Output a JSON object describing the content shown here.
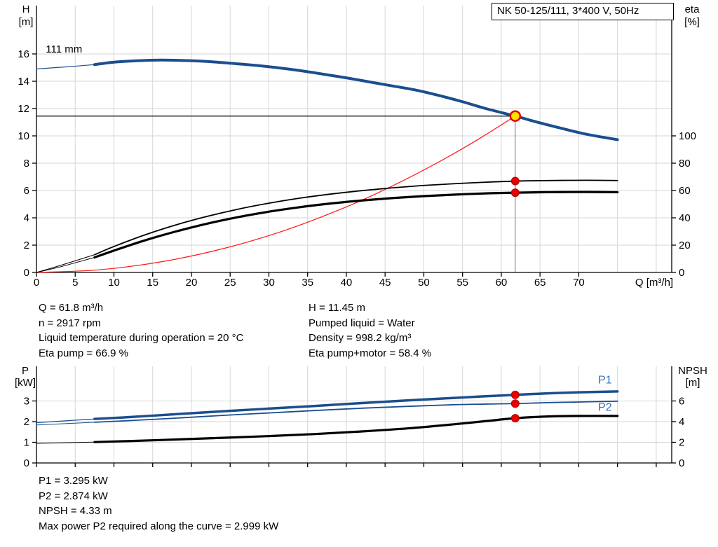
{
  "title_box": "NK 50-125/111, 3*400 V, 50Hz",
  "info_top": {
    "left": [
      "Q = 61.8 m³/h",
      "n = 2917 rpm",
      "Liquid temperature during operation = 20 °C",
      "Eta pump = 66.9 %"
    ],
    "right": [
      "H = 11.45 m",
      "Pumped liquid = Water",
      "Density = 998.2 kg/m³",
      "Eta pump+motor = 58.4 %"
    ]
  },
  "info_bottom": [
    "P1 = 3.295 kW",
    "P2 = 2.874 kW",
    "NPSH = 4.33 m",
    "Max power P2 required along the curve = 2.999 kW"
  ],
  "duty_point": {
    "q_m3h": 61.8,
    "h_m": 11.45,
    "eta_pump_pct": 66.9,
    "eta_pump_motor_pct": 58.4,
    "p1_kw": 3.295,
    "p2_kw": 2.874,
    "npsh_m": 4.33
  },
  "chart_data": [
    {
      "type": "line",
      "id": "qh",
      "title": "QH / efficiency curves",
      "x_axis": {
        "label": "Q [m³/h]",
        "min": 0,
        "max": 82,
        "grid_step": 5,
        "show_tick_labels": true,
        "ticks": [
          0,
          5,
          10,
          15,
          20,
          25,
          30,
          35,
          40,
          45,
          50,
          55,
          60,
          65,
          70
        ]
      },
      "y_left": {
        "title": "H",
        "unit": "[m]",
        "min": 0,
        "ticks": [
          0,
          2,
          4,
          6,
          8,
          10,
          12,
          14,
          16
        ]
      },
      "y_right": {
        "title": "eta",
        "unit": "[%]",
        "min": 0,
        "ticks": [
          0,
          20,
          40,
          60,
          80,
          100
        ]
      },
      "duty_lines": [
        {
          "type": "h",
          "axis": "left",
          "v": 11.45,
          "q1": 0,
          "q2": 61.8,
          "color": "#000000",
          "width": 1.3
        },
        {
          "type": "v",
          "axis": "left",
          "q": 61.8,
          "v1": 0,
          "v2": 11.45,
          "color": "#909090",
          "width": 1.2
        }
      ],
      "series": [
        {
          "name": "head-curve-lead",
          "axis": "left",
          "color": "#1b4e8e",
          "width": 1.2,
          "points": [
            [
              0,
              14.9
            ],
            [
              2.5,
              15.0
            ],
            [
              5,
              15.1
            ],
            [
              7.5,
              15.22
            ]
          ]
        },
        {
          "name": "head-curve-111mm",
          "axis": "left",
          "color": "#1b4e8e",
          "width": 4,
          "points": [
            [
              7.5,
              15.22
            ],
            [
              10,
              15.4
            ],
            [
              13,
              15.5
            ],
            [
              16,
              15.55
            ],
            [
              19,
              15.52
            ],
            [
              22,
              15.45
            ],
            [
              25,
              15.32
            ],
            [
              28,
              15.18
            ],
            [
              31,
              15.0
            ],
            [
              34,
              14.78
            ],
            [
              37,
              14.52
            ],
            [
              40,
              14.25
            ],
            [
              43,
              13.95
            ],
            [
              46,
              13.65
            ],
            [
              49,
              13.35
            ],
            [
              52,
              12.95
            ],
            [
              55,
              12.5
            ],
            [
              58,
              12.0
            ],
            [
              61.8,
              11.45
            ],
            [
              65,
              10.95
            ],
            [
              68,
              10.52
            ],
            [
              71,
              10.12
            ],
            [
              75,
              9.72
            ]
          ]
        },
        {
          "name": "system-curve",
          "axis": "left",
          "color": "#ff1414",
          "width": 1.2,
          "points": [
            [
              0,
              0
            ],
            [
              8,
              0.19
            ],
            [
              16,
              0.77
            ],
            [
              24,
              1.73
            ],
            [
              32,
              3.07
            ],
            [
              40,
              4.8
            ],
            [
              46,
              6.35
            ],
            [
              52,
              8.11
            ],
            [
              57,
              9.74
            ],
            [
              61.8,
              11.45
            ]
          ]
        },
        {
          "name": "eta-pump-lead",
          "axis": "right",
          "color": "#000000",
          "width": 1,
          "points": [
            [
              0,
              0
            ],
            [
              3,
              5
            ],
            [
              7.5,
              13
            ]
          ]
        },
        {
          "name": "eta-pump-curve",
          "axis": "right",
          "color": "#000000",
          "width": 1.8,
          "points": [
            [
              7.5,
              13
            ],
            [
              10,
              19
            ],
            [
              14,
              27.5
            ],
            [
              18,
              34.8
            ],
            [
              22,
              41
            ],
            [
              26,
              46.3
            ],
            [
              30,
              50.7
            ],
            [
              34,
              54.4
            ],
            [
              38,
              57.4
            ],
            [
              42,
              59.9
            ],
            [
              46,
              62
            ],
            [
              50,
              63.7
            ],
            [
              54,
              65
            ],
            [
              58,
              66.1
            ],
            [
              61.8,
              66.9
            ],
            [
              65,
              67.2
            ],
            [
              68,
              67.4
            ],
            [
              71,
              67.5
            ],
            [
              75,
              67.3
            ]
          ]
        },
        {
          "name": "eta-pump-motor-lead",
          "axis": "right",
          "color": "#000000",
          "width": 1,
          "points": [
            [
              0,
              0
            ],
            [
              3,
              4
            ],
            [
              7.5,
              11
            ]
          ]
        },
        {
          "name": "eta-pump-motor-curve",
          "axis": "right",
          "color": "#000000",
          "width": 3.2,
          "points": [
            [
              7.5,
              11
            ],
            [
              10,
              16
            ],
            [
              14,
              23.5
            ],
            [
              18,
              30
            ],
            [
              22,
              35.7
            ],
            [
              26,
              40.5
            ],
            [
              30,
              44.5
            ],
            [
              34,
              47.8
            ],
            [
              38,
              50.5
            ],
            [
              42,
              52.7
            ],
            [
              46,
              54.5
            ],
            [
              50,
              55.9
            ],
            [
              54,
              57.0
            ],
            [
              58,
              57.9
            ],
            [
              61.8,
              58.4
            ],
            [
              65,
              58.7
            ],
            [
              68,
              58.85
            ],
            [
              71,
              58.9
            ],
            [
              75,
              58.75
            ]
          ]
        }
      ],
      "markers": [
        {
          "name": "duty-point-head",
          "q": 61.8,
          "v": 11.45,
          "axis": "left",
          "r": 7,
          "fill": "#ffe000",
          "stroke": "#e00000",
          "sw": 2.5
        },
        {
          "name": "duty-point-eta-pump",
          "q": 61.8,
          "v": 66.9,
          "axis": "right",
          "r": 5.5,
          "fill": "#e60000",
          "stroke": "#b40000",
          "sw": 1
        },
        {
          "name": "duty-point-eta-pump-motor",
          "q": 61.8,
          "v": 58.4,
          "axis": "right",
          "r": 5.5,
          "fill": "#e60000",
          "stroke": "#b40000",
          "sw": 1
        }
      ],
      "labels": [
        {
          "text": "111 mm",
          "q": 1.2,
          "v": 16.1,
          "axis": "left",
          "color": "#000000",
          "anchor": "start",
          "size": 15
        }
      ]
    },
    {
      "type": "line",
      "id": "power",
      "title": "Power / NPSH curves",
      "x_axis": {
        "label": "",
        "min": 0,
        "max": 82,
        "grid_step": 5,
        "show_tick_labels": false,
        "ticks": [
          0,
          5,
          10,
          15,
          20,
          25,
          30,
          35,
          40,
          45,
          50,
          55,
          60,
          65,
          70,
          75,
          80
        ]
      },
      "y_left": {
        "title": "P",
        "unit": "[kW]",
        "min": 0,
        "ticks": [
          0,
          1,
          2,
          3
        ]
      },
      "y_right": {
        "title": "NPSH",
        "unit": "[m]",
        "min": 0,
        "ticks": [
          0,
          2,
          4,
          6
        ]
      },
      "duty_lines": [],
      "series": [
        {
          "name": "p1-curve-lead",
          "axis": "left",
          "color": "#1b4e8e",
          "width": 1.2,
          "points": [
            [
              0,
              1.95
            ],
            [
              7.5,
              2.13
            ]
          ]
        },
        {
          "name": "p1-curve",
          "axis": "left",
          "color": "#1b4e8e",
          "width": 3.5,
          "points": [
            [
              7.5,
              2.13
            ],
            [
              12,
              2.22
            ],
            [
              18,
              2.36
            ],
            [
              24,
              2.5
            ],
            [
              30,
              2.63
            ],
            [
              36,
              2.76
            ],
            [
              42,
              2.9
            ],
            [
              48,
              3.03
            ],
            [
              54,
              3.15
            ],
            [
              58,
              3.23
            ],
            [
              61.8,
              3.295
            ],
            [
              66,
              3.37
            ],
            [
              70,
              3.42
            ],
            [
              75,
              3.46
            ]
          ]
        },
        {
          "name": "p2-curve-lead",
          "axis": "left",
          "color": "#1b4e8e",
          "width": 1,
          "points": [
            [
              0,
              1.84
            ],
            [
              7.5,
              1.97
            ]
          ]
        },
        {
          "name": "p2-curve",
          "axis": "left",
          "color": "#1b4e8e",
          "width": 1.8,
          "points": [
            [
              7.5,
              1.97
            ],
            [
              12,
              2.05
            ],
            [
              18,
              2.17
            ],
            [
              24,
              2.3
            ],
            [
              30,
              2.42
            ],
            [
              36,
              2.54
            ],
            [
              42,
              2.65
            ],
            [
              48,
              2.74
            ],
            [
              54,
              2.82
            ],
            [
              58,
              2.85
            ],
            [
              61.8,
              2.874
            ],
            [
              66,
              2.92
            ],
            [
              70,
              2.95
            ],
            [
              75,
              2.99
            ]
          ]
        },
        {
          "name": "npsh-curve-lead",
          "axis": "right",
          "color": "#000000",
          "width": 1,
          "points": [
            [
              0,
              1.9
            ],
            [
              7.5,
              2.02
            ]
          ]
        },
        {
          "name": "npsh-curve",
          "axis": "right",
          "color": "#000000",
          "width": 3.2,
          "points": [
            [
              7.5,
              2.02
            ],
            [
              12,
              2.12
            ],
            [
              18,
              2.27
            ],
            [
              24,
              2.43
            ],
            [
              30,
              2.6
            ],
            [
              36,
              2.8
            ],
            [
              42,
              3.05
            ],
            [
              48,
              3.35
            ],
            [
              54,
              3.75
            ],
            [
              58,
              4.05
            ],
            [
              61.8,
              4.33
            ],
            [
              66,
              4.5
            ],
            [
              70,
              4.55
            ],
            [
              75,
              4.55
            ]
          ]
        }
      ],
      "markers": [
        {
          "name": "duty-point-p1",
          "q": 61.8,
          "v": 3.295,
          "axis": "left",
          "r": 5.5,
          "fill": "#e60000",
          "stroke": "#b40000",
          "sw": 1
        },
        {
          "name": "duty-point-p2",
          "q": 61.8,
          "v": 2.874,
          "axis": "left",
          "r": 5.5,
          "fill": "#e60000",
          "stroke": "#b40000",
          "sw": 1
        },
        {
          "name": "duty-point-npsh",
          "q": 61.8,
          "v": 4.33,
          "axis": "right",
          "r": 5.5,
          "fill": "#e60000",
          "stroke": "#b40000",
          "sw": 1
        }
      ],
      "labels": [
        {
          "text": "P1",
          "q": 72.5,
          "v": 3.85,
          "axis": "left",
          "color": "#2e6fb7",
          "anchor": "start",
          "size": 16
        },
        {
          "text": "P2",
          "q": 72.5,
          "v": 2.52,
          "axis": "left",
          "color": "#2e6fb7",
          "anchor": "start",
          "size": 16
        }
      ]
    }
  ]
}
